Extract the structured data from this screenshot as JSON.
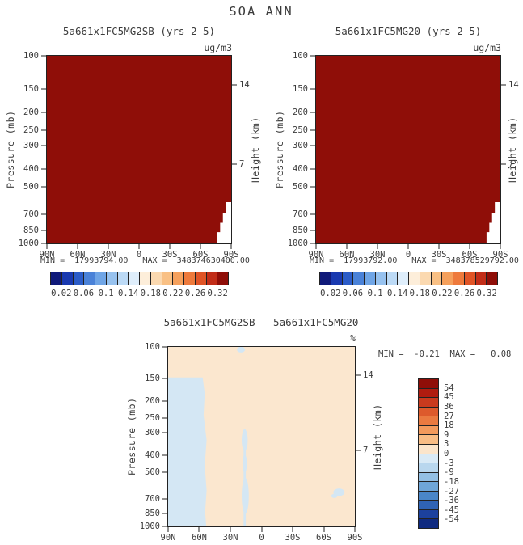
{
  "title": "SOA ANN",
  "chart_data": {
    "type": "heatmap",
    "shared_axes": {
      "lat_ticks": [
        "90N",
        "60N",
        "30N",
        "0",
        "30S",
        "60S",
        "90S"
      ],
      "pressure_label": "Pressure (mb)",
      "pressure_ticks": [
        100,
        150,
        200,
        250,
        300,
        400,
        500,
        700,
        850,
        1000
      ],
      "pressure_scale": "log",
      "height_label": "Height (km)",
      "height_ticks": [
        14,
        7
      ]
    },
    "panels": [
      {
        "id": "top-left",
        "title": "5a661x1FC5MG2SB (yrs 2-5)",
        "units": "ug/m3",
        "stats": "MIN =  17993794.00   MAX =  348374630400.00",
        "min": 17993794.0,
        "max": 348374630400.0,
        "fill_color": "#8f0e08",
        "terrain_color": "#ffffff"
      },
      {
        "id": "top-right",
        "title": "5a661x1FC5MG20 (yrs 2-5)",
        "units": "ug/m3",
        "stats": "MIN =  17993792.00   MAX =  348378529792.00",
        "min": 17993792.0,
        "max": 348378529792.0,
        "fill_color": "#8f0e08",
        "terrain_color": "#ffffff"
      },
      {
        "id": "difference",
        "title": "5a661x1FC5MG2SB - 5a661x1FC5MG20",
        "units": "%",
        "stats": "MIN =  -0.21  MAX =   0.08",
        "min": -0.21,
        "max": 0.08,
        "background_color": "#fbe7cf",
        "negative_color": "#d4e7f4"
      }
    ],
    "colorbar_top": {
      "orientation": "horizontal",
      "tick_labels": [
        "0.02",
        "0.06",
        "0.1",
        "0.14",
        "0.18",
        "0.22",
        "0.26",
        "0.32"
      ],
      "colors": [
        "#101a7a",
        "#1939b0",
        "#2b5cc8",
        "#4a82d8",
        "#6fa5e6",
        "#97c2ef",
        "#bcdaf6",
        "#dfeefb",
        "#fdeeda",
        "#fbd9b0",
        "#f9c084",
        "#f5a05c",
        "#ee7a3c",
        "#e05426",
        "#c22d18",
        "#8f0e08"
      ]
    },
    "colorbar_diff": {
      "orientation": "vertical",
      "tick_labels": [
        "54",
        "45",
        "36",
        "27",
        "18",
        "9",
        "3",
        "0",
        "-3",
        "-9",
        "-18",
        "-27",
        "-36",
        "-45",
        "-54"
      ],
      "colors": [
        "#8f0e08",
        "#b01c10",
        "#c93a1e",
        "#dd5a2c",
        "#ea7a40",
        "#f29a5c",
        "#f8bd85",
        "#fbe5cb",
        "#d9eaf6",
        "#b9d7ee",
        "#94c0e4",
        "#6fa6d8",
        "#4a86c8",
        "#2f63b4",
        "#1c419e",
        "#0f2a80"
      ]
    }
  }
}
